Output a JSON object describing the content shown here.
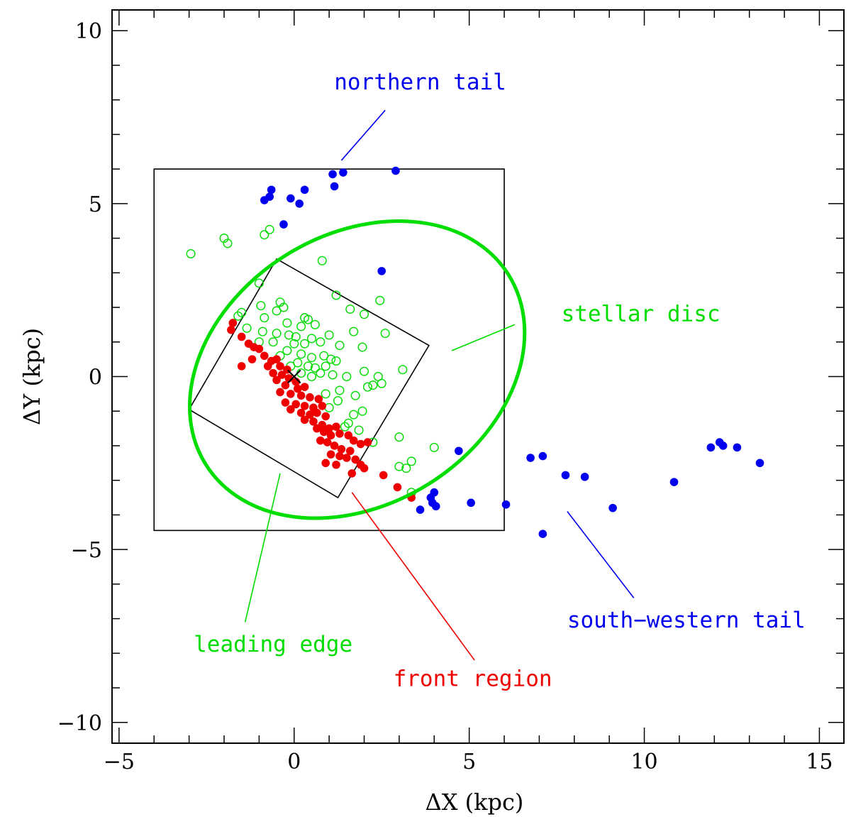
{
  "chart_data": {
    "type": "scatter",
    "xlabel": "ΔX  (kpc)",
    "ylabel": "ΔY  (kpc)",
    "xlim": [
      -5.2,
      15.7
    ],
    "ylim": [
      -10.6,
      10.6
    ],
    "x_ticks": [
      -5,
      0,
      5,
      10,
      15
    ],
    "x_tick_labels": [
      "−5",
      "0",
      "5",
      "10",
      "15"
    ],
    "y_ticks": [
      -10,
      -5,
      0,
      5,
      10
    ],
    "y_tick_labels": [
      "−10",
      "−5",
      "0",
      "5",
      "10"
    ],
    "x_minor_step": 1,
    "y_minor_step": 1,
    "grid": false,
    "colors": {
      "northern": "#0000ee",
      "disc": "#00dd00",
      "front": "#ee0000",
      "frame": "#000000"
    },
    "overlays": {
      "ellipse": {
        "cx": 1.8,
        "cy": 0.2,
        "semi_major": 5.1,
        "semi_minor": 3.9,
        "angle_deg": -32
      },
      "outer_box": {
        "x0": -4.0,
        "y0": -4.45,
        "x1": 6.0,
        "y1": 6.0
      },
      "rotated_box": [
        [
          -0.5,
          3.4
        ],
        [
          3.85,
          0.9
        ],
        [
          1.25,
          -3.5
        ],
        [
          -3.0,
          -0.95
        ]
      ],
      "center_marker": [
        0,
        0
      ]
    },
    "annotations": [
      {
        "text": "northern tail",
        "color": "#0000ee",
        "text_xy": [
          3.6,
          8.3
        ],
        "line": [
          [
            2.6,
            7.7
          ],
          [
            1.35,
            6.25
          ]
        ]
      },
      {
        "text": "stellar disc",
        "color": "#00dd00",
        "text_xy": [
          9.9,
          1.6
        ],
        "line": [
          [
            6.3,
            1.5
          ],
          [
            4.5,
            0.75
          ]
        ]
      },
      {
        "text": "leading edge",
        "color": "#00dd00",
        "text_xy": [
          -0.6,
          -7.95
        ],
        "line": [
          [
            -1.4,
            -7.1
          ],
          [
            -0.4,
            -2.8
          ]
        ]
      },
      {
        "text": "front region",
        "color": "#ee0000",
        "text_xy": [
          5.1,
          -8.95
        ],
        "line": [
          [
            5.15,
            -8.2
          ],
          [
            1.65,
            -3.35
          ]
        ]
      },
      {
        "text": "south−western tail",
        "color": "#0000ee",
        "text_xy": [
          11.2,
          -7.25
        ],
        "line": [
          [
            9.7,
            -6.4
          ],
          [
            7.8,
            -3.9
          ]
        ]
      }
    ],
    "series": [
      {
        "name": "northern tail",
        "marker": "filled-circle",
        "color": "#0000ee",
        "points": [
          [
            1.1,
            5.85
          ],
          [
            1.4,
            5.9
          ],
          [
            2.9,
            5.95
          ],
          [
            1.15,
            5.5
          ],
          [
            -0.65,
            5.4
          ],
          [
            -0.7,
            5.2
          ],
          [
            -0.85,
            5.1
          ],
          [
            -0.1,
            5.15
          ],
          [
            0.3,
            5.4
          ],
          [
            0.15,
            5.0
          ],
          [
            -0.3,
            4.4
          ],
          [
            2.5,
            3.05
          ],
          [
            4.7,
            -2.15
          ],
          [
            6.75,
            -2.35
          ],
          [
            7.1,
            -2.3
          ],
          [
            7.75,
            -2.85
          ],
          [
            8.3,
            -2.9
          ],
          [
            10.85,
            -3.05
          ],
          [
            11.9,
            -2.05
          ],
          [
            12.15,
            -1.9
          ],
          [
            12.25,
            -2.0
          ],
          [
            12.65,
            -2.05
          ],
          [
            13.3,
            -2.5
          ],
          [
            3.9,
            -3.5
          ],
          [
            4.0,
            -3.35
          ],
          [
            3.95,
            -3.65
          ],
          [
            4.05,
            -3.75
          ],
          [
            3.6,
            -3.85
          ],
          [
            5.05,
            -3.65
          ],
          [
            6.05,
            -3.7
          ],
          [
            9.1,
            -3.8
          ],
          [
            7.1,
            -4.55
          ]
        ]
      },
      {
        "name": "stellar disc",
        "marker": "open-circle",
        "color": "#00dd00",
        "points": [
          [
            -2.95,
            3.55
          ],
          [
            -2.0,
            4.0
          ],
          [
            -1.9,
            3.85
          ],
          [
            -0.85,
            4.1
          ],
          [
            -0.7,
            4.25
          ],
          [
            0.8,
            3.35
          ],
          [
            -1.0,
            2.7
          ],
          [
            1.2,
            2.35
          ],
          [
            -0.4,
            2.15
          ],
          [
            2.45,
            2.2
          ],
          [
            -0.95,
            2.05
          ],
          [
            -0.3,
            2.0
          ],
          [
            -0.5,
            1.9
          ],
          [
            0.4,
            1.65
          ],
          [
            1.6,
            1.95
          ],
          [
            -1.5,
            1.85
          ],
          [
            2.0,
            1.8
          ],
          [
            -1.6,
            1.75
          ],
          [
            -0.85,
            1.7
          ],
          [
            0.3,
            1.7
          ],
          [
            0.6,
            1.5
          ],
          [
            0.2,
            1.45
          ],
          [
            -0.2,
            1.55
          ],
          [
            -1.35,
            1.4
          ],
          [
            -0.9,
            1.3
          ],
          [
            -0.5,
            1.25
          ],
          [
            -0.15,
            1.2
          ],
          [
            0.05,
            1.15
          ],
          [
            0.5,
            1.1
          ],
          [
            1.0,
            1.2
          ],
          [
            1.7,
            1.3
          ],
          [
            2.6,
            1.25
          ],
          [
            -1.0,
            1.0
          ],
          [
            -0.6,
            1.0
          ],
          [
            0.0,
            0.95
          ],
          [
            0.3,
            0.95
          ],
          [
            0.75,
            1.0
          ],
          [
            1.3,
            0.9
          ],
          [
            1.95,
            0.85
          ],
          [
            -0.4,
            0.6
          ],
          [
            -0.2,
            0.75
          ],
          [
            0.2,
            0.65
          ],
          [
            0.5,
            0.55
          ],
          [
            0.85,
            0.6
          ],
          [
            1.05,
            0.5
          ],
          [
            0.1,
            0.4
          ],
          [
            -0.1,
            0.3
          ],
          [
            0.4,
            0.3
          ],
          [
            0.6,
            0.25
          ],
          [
            0.9,
            0.3
          ],
          [
            1.2,
            0.45
          ],
          [
            2.0,
            0.15
          ],
          [
            2.4,
            0.0
          ],
          [
            3.1,
            0.2
          ],
          [
            0.2,
            0.1
          ],
          [
            0.5,
            0.0
          ],
          [
            0.75,
            0.1
          ],
          [
            1.1,
            0.05
          ],
          [
            1.5,
            0.0
          ],
          [
            2.25,
            -0.25
          ],
          [
            2.5,
            -0.2
          ],
          [
            2.1,
            -0.3
          ],
          [
            0.9,
            -0.5
          ],
          [
            1.3,
            -0.4
          ],
          [
            1.75,
            -0.55
          ],
          [
            1.95,
            -1.0
          ],
          [
            1.7,
            -1.1
          ],
          [
            1.45,
            -1.45
          ],
          [
            1.55,
            -1.35
          ],
          [
            1.85,
            -1.55
          ],
          [
            1.25,
            -0.7
          ],
          [
            1.0,
            -0.9
          ],
          [
            3.0,
            -1.75
          ],
          [
            4.0,
            -2.05
          ],
          [
            3.35,
            -2.45
          ],
          [
            3.0,
            -2.6
          ],
          [
            3.2,
            -2.65
          ],
          [
            2.25,
            -1.9
          ],
          [
            3.35,
            -3.35
          ]
        ]
      },
      {
        "name": "front region",
        "marker": "filled-circle",
        "color": "#ee0000",
        "points": [
          [
            -1.75,
            1.55
          ],
          [
            -1.8,
            1.35
          ],
          [
            -1.5,
            1.15
          ],
          [
            -1.3,
            0.95
          ],
          [
            -1.15,
            0.85
          ],
          [
            -1.0,
            0.8
          ],
          [
            -0.85,
            0.6
          ],
          [
            -0.65,
            0.45
          ],
          [
            -0.5,
            0.5
          ],
          [
            -0.75,
            0.3
          ],
          [
            -0.4,
            0.3
          ],
          [
            -0.2,
            0.2
          ],
          [
            -0.6,
            0.1
          ],
          [
            -0.35,
            0.05
          ],
          [
            -0.15,
            -0.05
          ],
          [
            0.05,
            -0.15
          ],
          [
            -0.5,
            -0.1
          ],
          [
            -0.25,
            -0.25
          ],
          [
            0.1,
            -0.35
          ],
          [
            0.3,
            -0.3
          ],
          [
            -0.4,
            -0.45
          ],
          [
            -0.1,
            -0.5
          ],
          [
            0.2,
            -0.55
          ],
          [
            0.45,
            -0.6
          ],
          [
            0.7,
            -0.65
          ],
          [
            -0.25,
            -0.75
          ],
          [
            0.05,
            -0.8
          ],
          [
            0.3,
            -0.85
          ],
          [
            0.55,
            -0.9
          ],
          [
            0.8,
            -0.85
          ],
          [
            -0.1,
            -0.95
          ],
          [
            0.2,
            -1.05
          ],
          [
            0.45,
            -1.1
          ],
          [
            0.65,
            -1.05
          ],
          [
            0.9,
            -1.15
          ],
          [
            0.3,
            -1.25
          ],
          [
            0.55,
            -1.3
          ],
          [
            0.8,
            -1.4
          ],
          [
            1.0,
            -1.5
          ],
          [
            1.2,
            -1.45
          ],
          [
            0.65,
            -1.5
          ],
          [
            0.85,
            -1.6
          ],
          [
            1.05,
            -1.7
          ],
          [
            1.3,
            -1.65
          ],
          [
            1.55,
            -1.7
          ],
          [
            1.7,
            -1.85
          ],
          [
            1.9,
            -1.95
          ],
          [
            2.1,
            -1.9
          ],
          [
            0.75,
            -1.85
          ],
          [
            0.95,
            -1.9
          ],
          [
            1.15,
            -2.0
          ],
          [
            1.35,
            -2.1
          ],
          [
            1.6,
            -2.15
          ],
          [
            1.05,
            -2.25
          ],
          [
            1.3,
            -2.3
          ],
          [
            1.5,
            -2.35
          ],
          [
            1.75,
            -2.4
          ],
          [
            0.9,
            -2.5
          ],
          [
            1.2,
            -2.55
          ],
          [
            1.9,
            -2.55
          ],
          [
            2.0,
            -2.65
          ],
          [
            1.65,
            -2.8
          ],
          [
            2.55,
            -2.85
          ],
          [
            2.95,
            -3.2
          ],
          [
            3.35,
            -3.5
          ],
          [
            -1.5,
            0.3
          ],
          [
            -1.2,
            0.5
          ]
        ]
      }
    ]
  }
}
